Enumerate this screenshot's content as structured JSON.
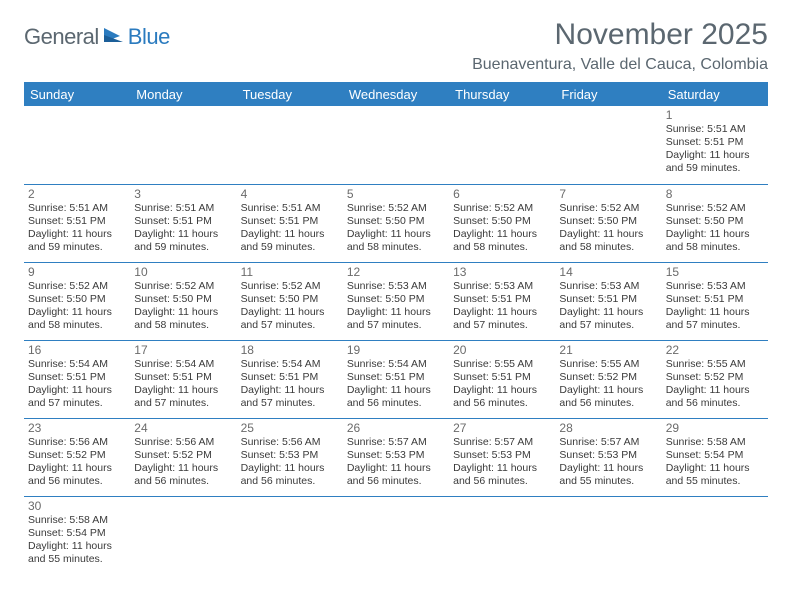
{
  "logo": {
    "part1": "General",
    "part2": "Blue"
  },
  "title": "November 2025",
  "location": "Buenaventura, Valle del Cauca, Colombia",
  "colors": {
    "header_bg": "#2f7fc1",
    "header_text": "#ffffff",
    "accent_line": "#2f7fc1",
    "daynum": "#6b6b6b",
    "body_text": "#3a3a3a",
    "logo_gray": "#5b6770",
    "logo_blue": "#2b7bbf"
  },
  "weekdays": [
    "Sunday",
    "Monday",
    "Tuesday",
    "Wednesday",
    "Thursday",
    "Friday",
    "Saturday"
  ],
  "weeks": [
    [
      null,
      null,
      null,
      null,
      null,
      null,
      {
        "n": "1",
        "sr": "5:51 AM",
        "ss": "5:51 PM",
        "dl": "11 hours and 59 minutes."
      }
    ],
    [
      {
        "n": "2",
        "sr": "5:51 AM",
        "ss": "5:51 PM",
        "dl": "11 hours and 59 minutes."
      },
      {
        "n": "3",
        "sr": "5:51 AM",
        "ss": "5:51 PM",
        "dl": "11 hours and 59 minutes."
      },
      {
        "n": "4",
        "sr": "5:51 AM",
        "ss": "5:51 PM",
        "dl": "11 hours and 59 minutes."
      },
      {
        "n": "5",
        "sr": "5:52 AM",
        "ss": "5:50 PM",
        "dl": "11 hours and 58 minutes."
      },
      {
        "n": "6",
        "sr": "5:52 AM",
        "ss": "5:50 PM",
        "dl": "11 hours and 58 minutes."
      },
      {
        "n": "7",
        "sr": "5:52 AM",
        "ss": "5:50 PM",
        "dl": "11 hours and 58 minutes."
      },
      {
        "n": "8",
        "sr": "5:52 AM",
        "ss": "5:50 PM",
        "dl": "11 hours and 58 minutes."
      }
    ],
    [
      {
        "n": "9",
        "sr": "5:52 AM",
        "ss": "5:50 PM",
        "dl": "11 hours and 58 minutes."
      },
      {
        "n": "10",
        "sr": "5:52 AM",
        "ss": "5:50 PM",
        "dl": "11 hours and 58 minutes."
      },
      {
        "n": "11",
        "sr": "5:52 AM",
        "ss": "5:50 PM",
        "dl": "11 hours and 57 minutes."
      },
      {
        "n": "12",
        "sr": "5:53 AM",
        "ss": "5:50 PM",
        "dl": "11 hours and 57 minutes."
      },
      {
        "n": "13",
        "sr": "5:53 AM",
        "ss": "5:51 PM",
        "dl": "11 hours and 57 minutes."
      },
      {
        "n": "14",
        "sr": "5:53 AM",
        "ss": "5:51 PM",
        "dl": "11 hours and 57 minutes."
      },
      {
        "n": "15",
        "sr": "5:53 AM",
        "ss": "5:51 PM",
        "dl": "11 hours and 57 minutes."
      }
    ],
    [
      {
        "n": "16",
        "sr": "5:54 AM",
        "ss": "5:51 PM",
        "dl": "11 hours and 57 minutes."
      },
      {
        "n": "17",
        "sr": "5:54 AM",
        "ss": "5:51 PM",
        "dl": "11 hours and 57 minutes."
      },
      {
        "n": "18",
        "sr": "5:54 AM",
        "ss": "5:51 PM",
        "dl": "11 hours and 57 minutes."
      },
      {
        "n": "19",
        "sr": "5:54 AM",
        "ss": "5:51 PM",
        "dl": "11 hours and 56 minutes."
      },
      {
        "n": "20",
        "sr": "5:55 AM",
        "ss": "5:51 PM",
        "dl": "11 hours and 56 minutes."
      },
      {
        "n": "21",
        "sr": "5:55 AM",
        "ss": "5:52 PM",
        "dl": "11 hours and 56 minutes."
      },
      {
        "n": "22",
        "sr": "5:55 AM",
        "ss": "5:52 PM",
        "dl": "11 hours and 56 minutes."
      }
    ],
    [
      {
        "n": "23",
        "sr": "5:56 AM",
        "ss": "5:52 PM",
        "dl": "11 hours and 56 minutes."
      },
      {
        "n": "24",
        "sr": "5:56 AM",
        "ss": "5:52 PM",
        "dl": "11 hours and 56 minutes."
      },
      {
        "n": "25",
        "sr": "5:56 AM",
        "ss": "5:53 PM",
        "dl": "11 hours and 56 minutes."
      },
      {
        "n": "26",
        "sr": "5:57 AM",
        "ss": "5:53 PM",
        "dl": "11 hours and 56 minutes."
      },
      {
        "n": "27",
        "sr": "5:57 AM",
        "ss": "5:53 PM",
        "dl": "11 hours and 56 minutes."
      },
      {
        "n": "28",
        "sr": "5:57 AM",
        "ss": "5:53 PM",
        "dl": "11 hours and 55 minutes."
      },
      {
        "n": "29",
        "sr": "5:58 AM",
        "ss": "5:54 PM",
        "dl": "11 hours and 55 minutes."
      }
    ],
    [
      {
        "n": "30",
        "sr": "5:58 AM",
        "ss": "5:54 PM",
        "dl": "11 hours and 55 minutes."
      },
      null,
      null,
      null,
      null,
      null,
      null
    ]
  ],
  "labels": {
    "sunrise": "Sunrise:",
    "sunset": "Sunset:",
    "daylight": "Daylight:"
  }
}
